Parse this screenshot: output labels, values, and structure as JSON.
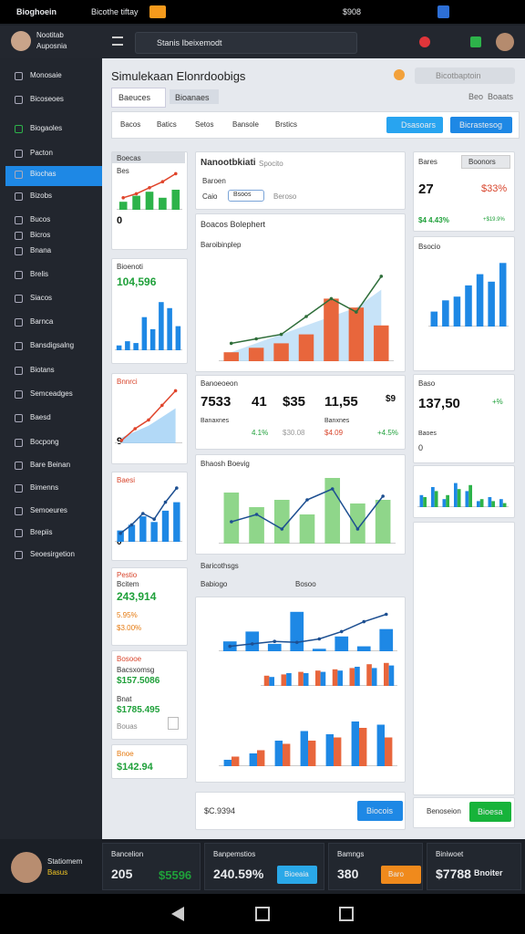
{
  "status_bar": {
    "app": "Bioghoein",
    "title": "Bicothe tiftay",
    "right": "$908"
  },
  "profile": {
    "name": "Nootitab",
    "subtitle": "Auposnia"
  },
  "search": "Stanis Ibeixemodt",
  "sidebar": [
    "Monosaie",
    "Bicoseoes",
    "Biogaoles",
    "Pacton",
    "Biochas",
    "Bizobs",
    "Bucos",
    "Bicros",
    "Bnana",
    "Brelis",
    "Siacos",
    "Barnca",
    "Bansdigsalng",
    "Biotans",
    "Semceadges",
    "Baesd",
    "Bocpong",
    "Bare Beinan",
    "Bimenns",
    "Semoeures",
    "Brepiis",
    "Seoesirgetion"
  ],
  "page": {
    "title": "Simulekaan Elonrdoobigs",
    "tabs": [
      "Baeuces",
      "Bioanaes"
    ],
    "search": "Bicotbaptoin",
    "links": [
      "Beo",
      "Boaats"
    ]
  },
  "filters": [
    "Bacos",
    "Batics",
    "Setos",
    "Bansole",
    "Brstics"
  ],
  "buttons": [
    "Dsasoars",
    "Bicrastesog"
  ],
  "col1": {
    "c1": [
      "Boecas",
      "Bes",
      "0"
    ],
    "c2": [
      "Bioenoti",
      "104,596"
    ],
    "c3": [
      "Bnnrci",
      "9"
    ],
    "c4": [
      "Baesi",
      "0"
    ],
    "c5": [
      "Pestio",
      "Bcitem",
      "243,914",
      "5.95%",
      "$3.00%"
    ],
    "c6": [
      "Bosooe",
      "Bacsxomsg",
      "$157.5086",
      "Bnat",
      "$1785.495",
      "Bouas"
    ],
    "c7": [
      "Bnoe",
      "$142.94"
    ]
  },
  "col2": {
    "c1": [
      "Nanootbkiati",
      "Spocito",
      "Baroen",
      "Caio",
      "Bsoos",
      "Beroso"
    ],
    "c2": [
      "Boacos Bolephert",
      "Baroibinplep"
    ],
    "stats": [
      "Banoeoeon",
      "7533",
      "41",
      "$35",
      "11,55",
      "$9",
      "Banaxnes",
      "4.1%",
      "$30.08",
      "Banxnes",
      "$4.09",
      "+4.5%"
    ],
    "c4": [
      "Bhaosh Boevig"
    ],
    "c5": [
      "Baricothsgs",
      "Babiogo",
      "Bosoo"
    ],
    "foot": [
      "$C.9394",
      "Biocois"
    ]
  },
  "col3": {
    "c1": [
      "Bares",
      "Boonors",
      "27",
      "$33%",
      "$4 4.43%",
      "+$19.9%"
    ],
    "c2": [
      "Bsocio"
    ],
    "c3": [
      "Baso",
      "137,50",
      "+%",
      "Baoes",
      "0"
    ],
    "foot": [
      "Benoseion",
      "Bioesa"
    ]
  },
  "bottom": {
    "name": "Statiomem",
    "role": "Basus",
    "cells": [
      [
        "Bancelion",
        "205",
        "$5596"
      ],
      [
        "Banpemstios",
        "240.59%",
        "Bioeaia"
      ],
      [
        "Bamngs",
        "380",
        "Baro"
      ],
      [
        "Biniwoet",
        "$7788",
        "Bnoiter"
      ]
    ]
  },
  "charts": [
    {
      "type": "combo",
      "ylim": [
        0,
        100
      ],
      "series": [
        {
          "kind": "bar",
          "color": "#2db34a",
          "values": [
            20,
            35,
            45,
            30,
            50
          ]
        },
        {
          "kind": "line",
          "color": "#e0452c",
          "values": [
            30,
            40,
            55,
            70,
            90
          ]
        }
      ]
    },
    {
      "type": "combo",
      "ylim": [
        0,
        100
      ],
      "series": [
        {
          "kind": "bar",
          "color": "#1e88e5",
          "values": [
            8,
            15,
            12,
            55,
            35,
            80,
            70,
            40
          ]
        }
      ]
    },
    {
      "type": "combo",
      "ylim": [
        0,
        100
      ],
      "series": [
        {
          "kind": "area",
          "color": "#9fd0f5",
          "values": [
            10,
            20,
            30,
            45,
            60
          ]
        },
        {
          "kind": "line",
          "color": "#e0452c",
          "values": [
            5,
            25,
            40,
            65,
            90
          ]
        }
      ]
    },
    {
      "type": "combo",
      "ylim": [
        0,
        100
      ],
      "series": [
        {
          "kind": "bar",
          "color": "#1e88e5",
          "values": [
            20,
            30,
            45,
            35,
            55,
            70
          ]
        },
        {
          "kind": "line",
          "color": "#1d4f91",
          "values": [
            15,
            30,
            50,
            40,
            70,
            95
          ]
        }
      ]
    },
    {
      "type": "combo",
      "ylim": [
        0,
        100
      ],
      "series": [
        {
          "kind": "area",
          "color": "#b9dcf6",
          "values": [
            10,
            20,
            30,
            40,
            50,
            60,
            80
          ]
        },
        {
          "kind": "bar",
          "color": "#e8663c",
          "values": [
            10,
            15,
            20,
            30,
            70,
            60,
            40
          ]
        },
        {
          "kind": "line",
          "color": "#2f6e3a",
          "values": [
            20,
            25,
            30,
            50,
            70,
            55,
            95
          ]
        }
      ]
    },
    {
      "type": "combo",
      "ylim": [
        0,
        100
      ],
      "series": [
        {
          "kind": "bar",
          "color": "#8fd68a",
          "values": [
            70,
            50,
            60,
            40,
            90,
            55,
            60
          ]
        },
        {
          "kind": "line",
          "color": "#1d4f91",
          "values": [
            30,
            40,
            20,
            60,
            75,
            20,
            65
          ]
        }
      ]
    },
    {
      "type": "combo",
      "ylim": [
        0,
        100
      ],
      "series": [
        {
          "kind": "bar",
          "color": "#1e88e5",
          "values": [
            20,
            40,
            15,
            80,
            5,
            30,
            10,
            45
          ]
        },
        {
          "kind": "line",
          "color": "#1d4f91",
          "values": [
            10,
            15,
            20,
            18,
            25,
            40,
            60,
            75
          ]
        }
      ]
    },
    {
      "type": "combo",
      "ylim": [
        0,
        100
      ],
      "series": [
        {
          "kind": "bar",
          "color": "#e8663c",
          "values": [
            40,
            45,
            55,
            60,
            65,
            70,
            85,
            90
          ]
        },
        {
          "kind": "bar",
          "color": "#1e88e5",
          "values": [
            35,
            50,
            50,
            55,
            60,
            75,
            70,
            80
          ]
        }
      ]
    },
    {
      "type": "combo",
      "ylim": [
        0,
        100
      ],
      "series": [
        {
          "kind": "bar",
          "color": "#1e88e5",
          "values": [
            10,
            20,
            40,
            55,
            50,
            70,
            65
          ]
        },
        {
          "kind": "bar",
          "color": "#e8663c",
          "values": [
            15,
            25,
            35,
            40,
            45,
            60,
            45
          ]
        }
      ]
    },
    {
      "type": "combo",
      "ylim": [
        0,
        100
      ],
      "series": [
        {
          "kind": "bar",
          "color": "#1e88e5",
          "values": [
            20,
            35,
            40,
            55,
            70,
            60,
            85
          ]
        }
      ]
    },
    {
      "type": "combo",
      "ylim": [
        0,
        100
      ],
      "series": [
        {
          "kind": "bar",
          "color": "#1e88e5",
          "values": [
            30,
            50,
            20,
            60,
            40,
            15,
            25,
            20
          ]
        },
        {
          "kind": "bar",
          "color": "#2db34a",
          "values": [
            25,
            40,
            30,
            45,
            55,
            20,
            15,
            10
          ]
        }
      ]
    }
  ]
}
